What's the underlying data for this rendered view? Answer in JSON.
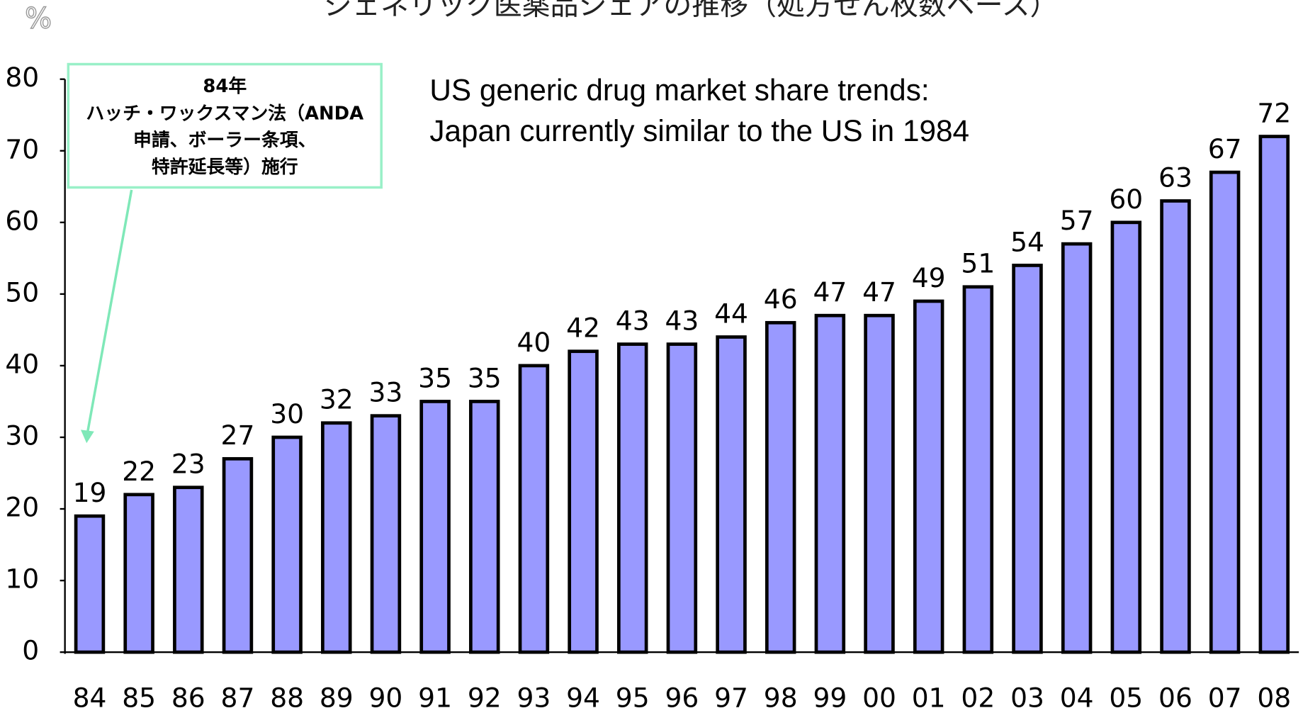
{
  "chart_data": {
    "type": "bar",
    "title": "ジェネリック医薬品シェアの推移（処方せん枚数ベース）",
    "y_label": "%",
    "subtitle_lines": [
      "US generic drug market share trends:",
      "Japan currently similar to the US in 1984"
    ],
    "annotation_lines": [
      "84年",
      "ハッチ・ワックスマン法（ANDA",
      "申請、ボーラー条項、",
      "特許延長等）施行"
    ],
    "categories": [
      "84",
      "85",
      "86",
      "87",
      "88",
      "89",
      "90",
      "91",
      "92",
      "93",
      "94",
      "95",
      "96",
      "97",
      "98",
      "99",
      "00",
      "01",
      "02",
      "03",
      "04",
      "05",
      "06",
      "07",
      "08"
    ],
    "values": [
      19,
      22,
      23,
      27,
      30,
      32,
      33,
      35,
      35,
      40,
      42,
      43,
      43,
      44,
      46,
      47,
      47,
      49,
      51,
      54,
      57,
      60,
      63,
      67,
      72
    ],
    "color": "#9999ff",
    "ylim": [
      0,
      80
    ],
    "yticks": [
      0,
      10,
      20,
      30,
      40,
      50,
      60,
      70,
      80
    ],
    "grid": false
  }
}
